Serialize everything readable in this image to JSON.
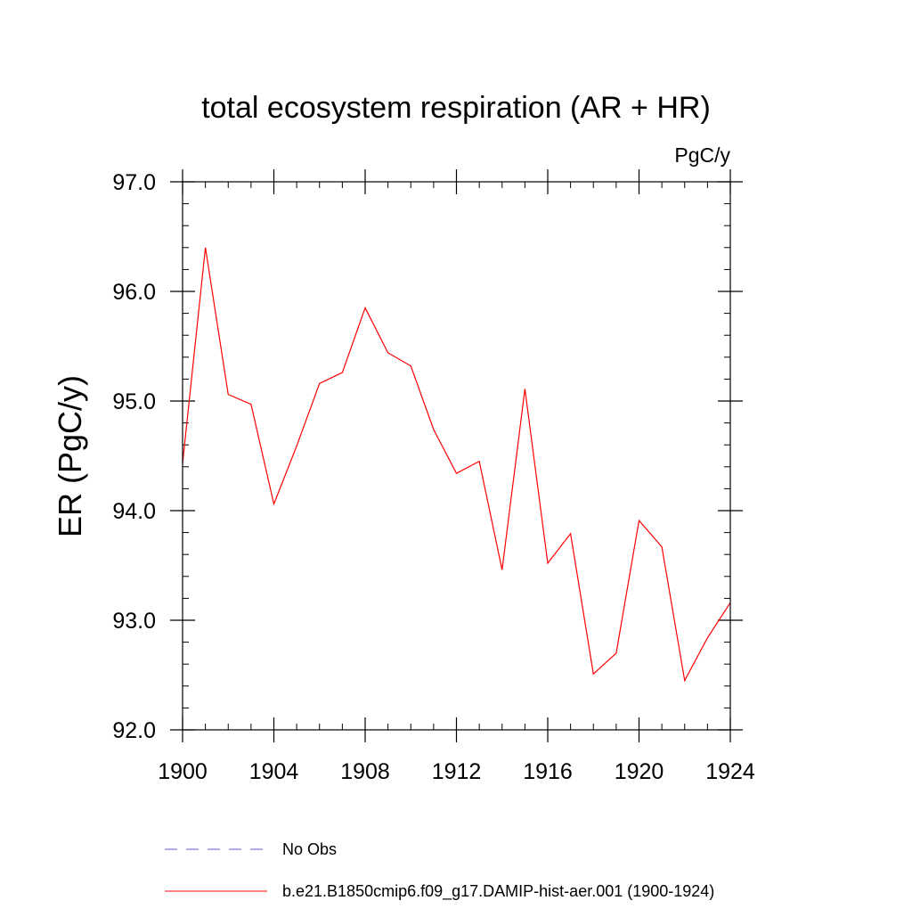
{
  "chart_data": {
    "type": "line",
    "title": "total ecosystem respiration (AR + HR)",
    "units_label": "PgC/y",
    "ylabel": "ER  (PgC/y)",
    "xlabel": "",
    "xlim": [
      1900,
      1924
    ],
    "ylim": [
      92.0,
      97.0
    ],
    "x_ticks": [
      1900,
      1904,
      1908,
      1912,
      1916,
      1920,
      1924
    ],
    "x_tick_labels": [
      "1900",
      "1904",
      "1908",
      "1912",
      "1916",
      "1920",
      "1924"
    ],
    "x_minor_step": 1,
    "y_ticks": [
      92.0,
      93.0,
      94.0,
      95.0,
      96.0,
      97.0
    ],
    "y_tick_labels": [
      "92.0",
      "93.0",
      "94.0",
      "95.0",
      "96.0",
      "97.0"
    ],
    "y_minor_step": 0.2,
    "grid": false,
    "legend_position": "bottom",
    "series": [
      {
        "name": "b.e21.B1850cmip6.f09_g17.DAMIP-hist-aer.001 (1900-1924)",
        "color": "#ff0000",
        "style": "solid",
        "x": [
          1900,
          1901,
          1902,
          1903,
          1904,
          1905,
          1906,
          1907,
          1908,
          1909,
          1910,
          1911,
          1912,
          1913,
          1914,
          1915,
          1916,
          1917,
          1918,
          1919,
          1920,
          1921,
          1922,
          1923,
          1924
        ],
        "values": [
          94.43,
          96.4,
          95.06,
          94.97,
          94.06,
          94.59,
          95.16,
          95.26,
          95.85,
          95.44,
          95.32,
          94.74,
          94.34,
          94.45,
          93.46,
          95.11,
          93.52,
          93.79,
          92.51,
          92.7,
          93.91,
          93.67,
          92.45,
          92.84,
          93.16
        ]
      }
    ],
    "legend": [
      {
        "label": "No Obs",
        "color": "#6a5acd",
        "style": "dashed"
      },
      {
        "label": "b.e21.B1850cmip6.f09_g17.DAMIP-hist-aer.001 (1900-1924)",
        "color": "#ff0000",
        "style": "solid"
      }
    ]
  }
}
